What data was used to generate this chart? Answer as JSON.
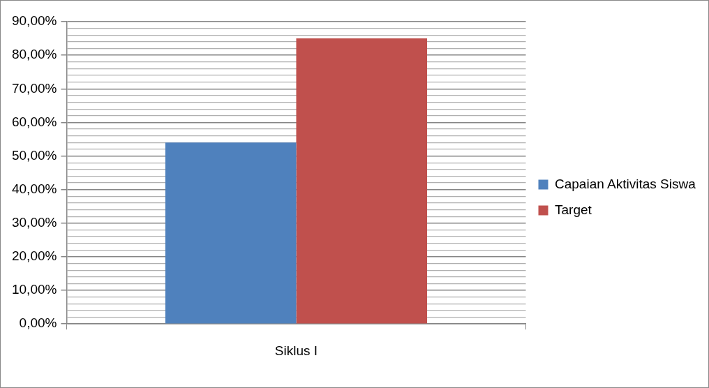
{
  "chart_data": {
    "type": "bar",
    "categories": [
      "Siklus I"
    ],
    "series": [
      {
        "name": "Capaian Aktivitas Siswa",
        "color": "#4f81bd",
        "values": [
          54
        ]
      },
      {
        "name": "Target",
        "color": "#c0504d",
        "values": [
          85
        ]
      }
    ],
    "ylim": [
      0,
      90
    ],
    "yticks": [
      {
        "value": 0,
        "label": "0,00%"
      },
      {
        "value": 2,
        "label": null
      },
      {
        "value": 4,
        "label": null
      },
      {
        "value": 6,
        "label": null
      },
      {
        "value": 8,
        "label": null
      },
      {
        "value": 10,
        "label": "10,00%"
      },
      {
        "value": 12,
        "label": null
      },
      {
        "value": 14,
        "label": null
      },
      {
        "value": 16,
        "label": null
      },
      {
        "value": 18,
        "label": null
      },
      {
        "value": 20,
        "label": "20,00%"
      },
      {
        "value": 22,
        "label": null
      },
      {
        "value": 24,
        "label": null
      },
      {
        "value": 26,
        "label": null
      },
      {
        "value": 28,
        "label": null
      },
      {
        "value": 30,
        "label": "30,00%"
      },
      {
        "value": 32,
        "label": null
      },
      {
        "value": 34,
        "label": null
      },
      {
        "value": 36,
        "label": null
      },
      {
        "value": 38,
        "label": null
      },
      {
        "value": 40,
        "label": "40,00%"
      },
      {
        "value": 42,
        "label": null
      },
      {
        "value": 44,
        "label": null
      },
      {
        "value": 46,
        "label": null
      },
      {
        "value": 48,
        "label": null
      },
      {
        "value": 50,
        "label": "50,00%"
      },
      {
        "value": 52,
        "label": null
      },
      {
        "value": 54,
        "label": null
      },
      {
        "value": 56,
        "label": null
      },
      {
        "value": 58,
        "label": null
      },
      {
        "value": 60,
        "label": "60,00%"
      },
      {
        "value": 62,
        "label": null
      },
      {
        "value": 64,
        "label": null
      },
      {
        "value": 66,
        "label": null
      },
      {
        "value": 68,
        "label": null
      },
      {
        "value": 70,
        "label": "70,00%"
      },
      {
        "value": 72,
        "label": null
      },
      {
        "value": 74,
        "label": null
      },
      {
        "value": 76,
        "label": null
      },
      {
        "value": 78,
        "label": null
      },
      {
        "value": 80,
        "label": "80,00%"
      },
      {
        "value": 82,
        "label": null
      },
      {
        "value": 84,
        "label": null
      },
      {
        "value": 86,
        "label": null
      },
      {
        "value": 88,
        "label": null
      },
      {
        "value": 90,
        "label": "90,00%"
      }
    ],
    "grid": "y",
    "legend": "right"
  }
}
